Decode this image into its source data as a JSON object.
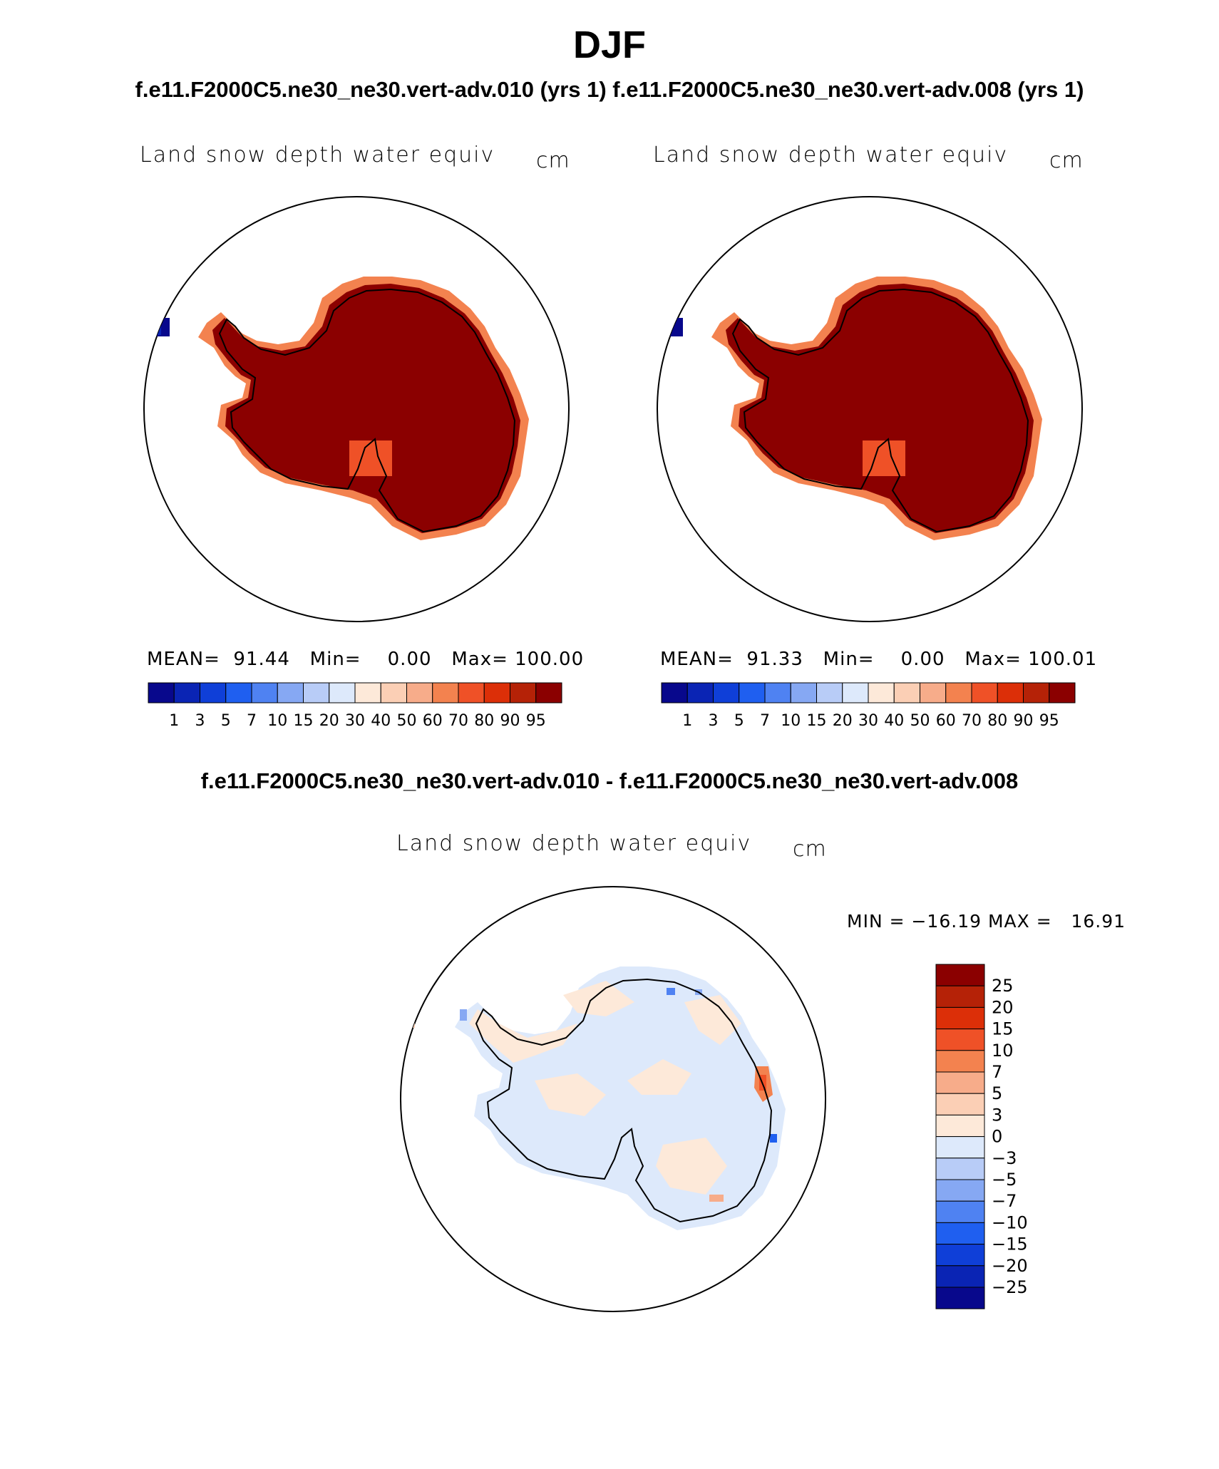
{
  "title": "DJF",
  "subtitle": "f.e11.F2000C5.ne30_ne30.vert-adv.010 (yrs 1) f.e11.F2000C5.ne30_ne30.vert-adv.008 (yrs 1)",
  "diff_title": "f.e11.F2000C5.ne30_ne30.vert-adv.010 - f.e11.F2000C5.ne30_ne30.vert-adv.008",
  "panels": [
    {
      "variable": "Land snow depth water equiv",
      "units": "cm",
      "mean_label": "MEAN=",
      "mean_value": "91.44",
      "min_label": "Min=",
      "min_value": "0.00",
      "max_label": "Max=",
      "max_value": "100.00"
    },
    {
      "variable": "Land snow depth water equiv",
      "units": "cm",
      "mean_label": "MEAN=",
      "mean_value": "91.33",
      "min_label": "Min=",
      "min_value": "0.00",
      "max_label": "Max=",
      "max_value": "100.01"
    }
  ],
  "diff_panel": {
    "variable": "Land snow depth water equiv",
    "units": "cm",
    "minmax_text": "MIN = −16.19 MAX =   16.91"
  },
  "colorbar_abs": {
    "levels": [
      "1",
      "3",
      "5",
      "7",
      "10",
      "15",
      "20",
      "30",
      "40",
      "50",
      "60",
      "70",
      "80",
      "90",
      "95"
    ],
    "colors": [
      "#08088c",
      "#0a24b4",
      "#0f3fd8",
      "#1f5ff0",
      "#4f82f2",
      "#86a8f3",
      "#b8ccf7",
      "#dde9fb",
      "#fde9d9",
      "#fbcfb5",
      "#f7ac8a",
      "#f3824f",
      "#ef5127",
      "#dc2f08",
      "#b52207",
      "#8b0000"
    ]
  },
  "colorbar_diff": {
    "levels": [
      "25",
      "20",
      "15",
      "10",
      "7",
      "5",
      "3",
      "0",
      "−3",
      "−5",
      "−7",
      "−10",
      "−15",
      "−20",
      "−25"
    ],
    "colors": [
      "#8b0000",
      "#b52207",
      "#dc2f08",
      "#ef5127",
      "#f3824f",
      "#f7ac8a",
      "#fbcfb5",
      "#fde9d9",
      "#dde9fb",
      "#b8ccf7",
      "#86a8f3",
      "#4f82f2",
      "#1f5ff0",
      "#0f3fd8",
      "#0a24b4",
      "#08088c"
    ]
  }
}
